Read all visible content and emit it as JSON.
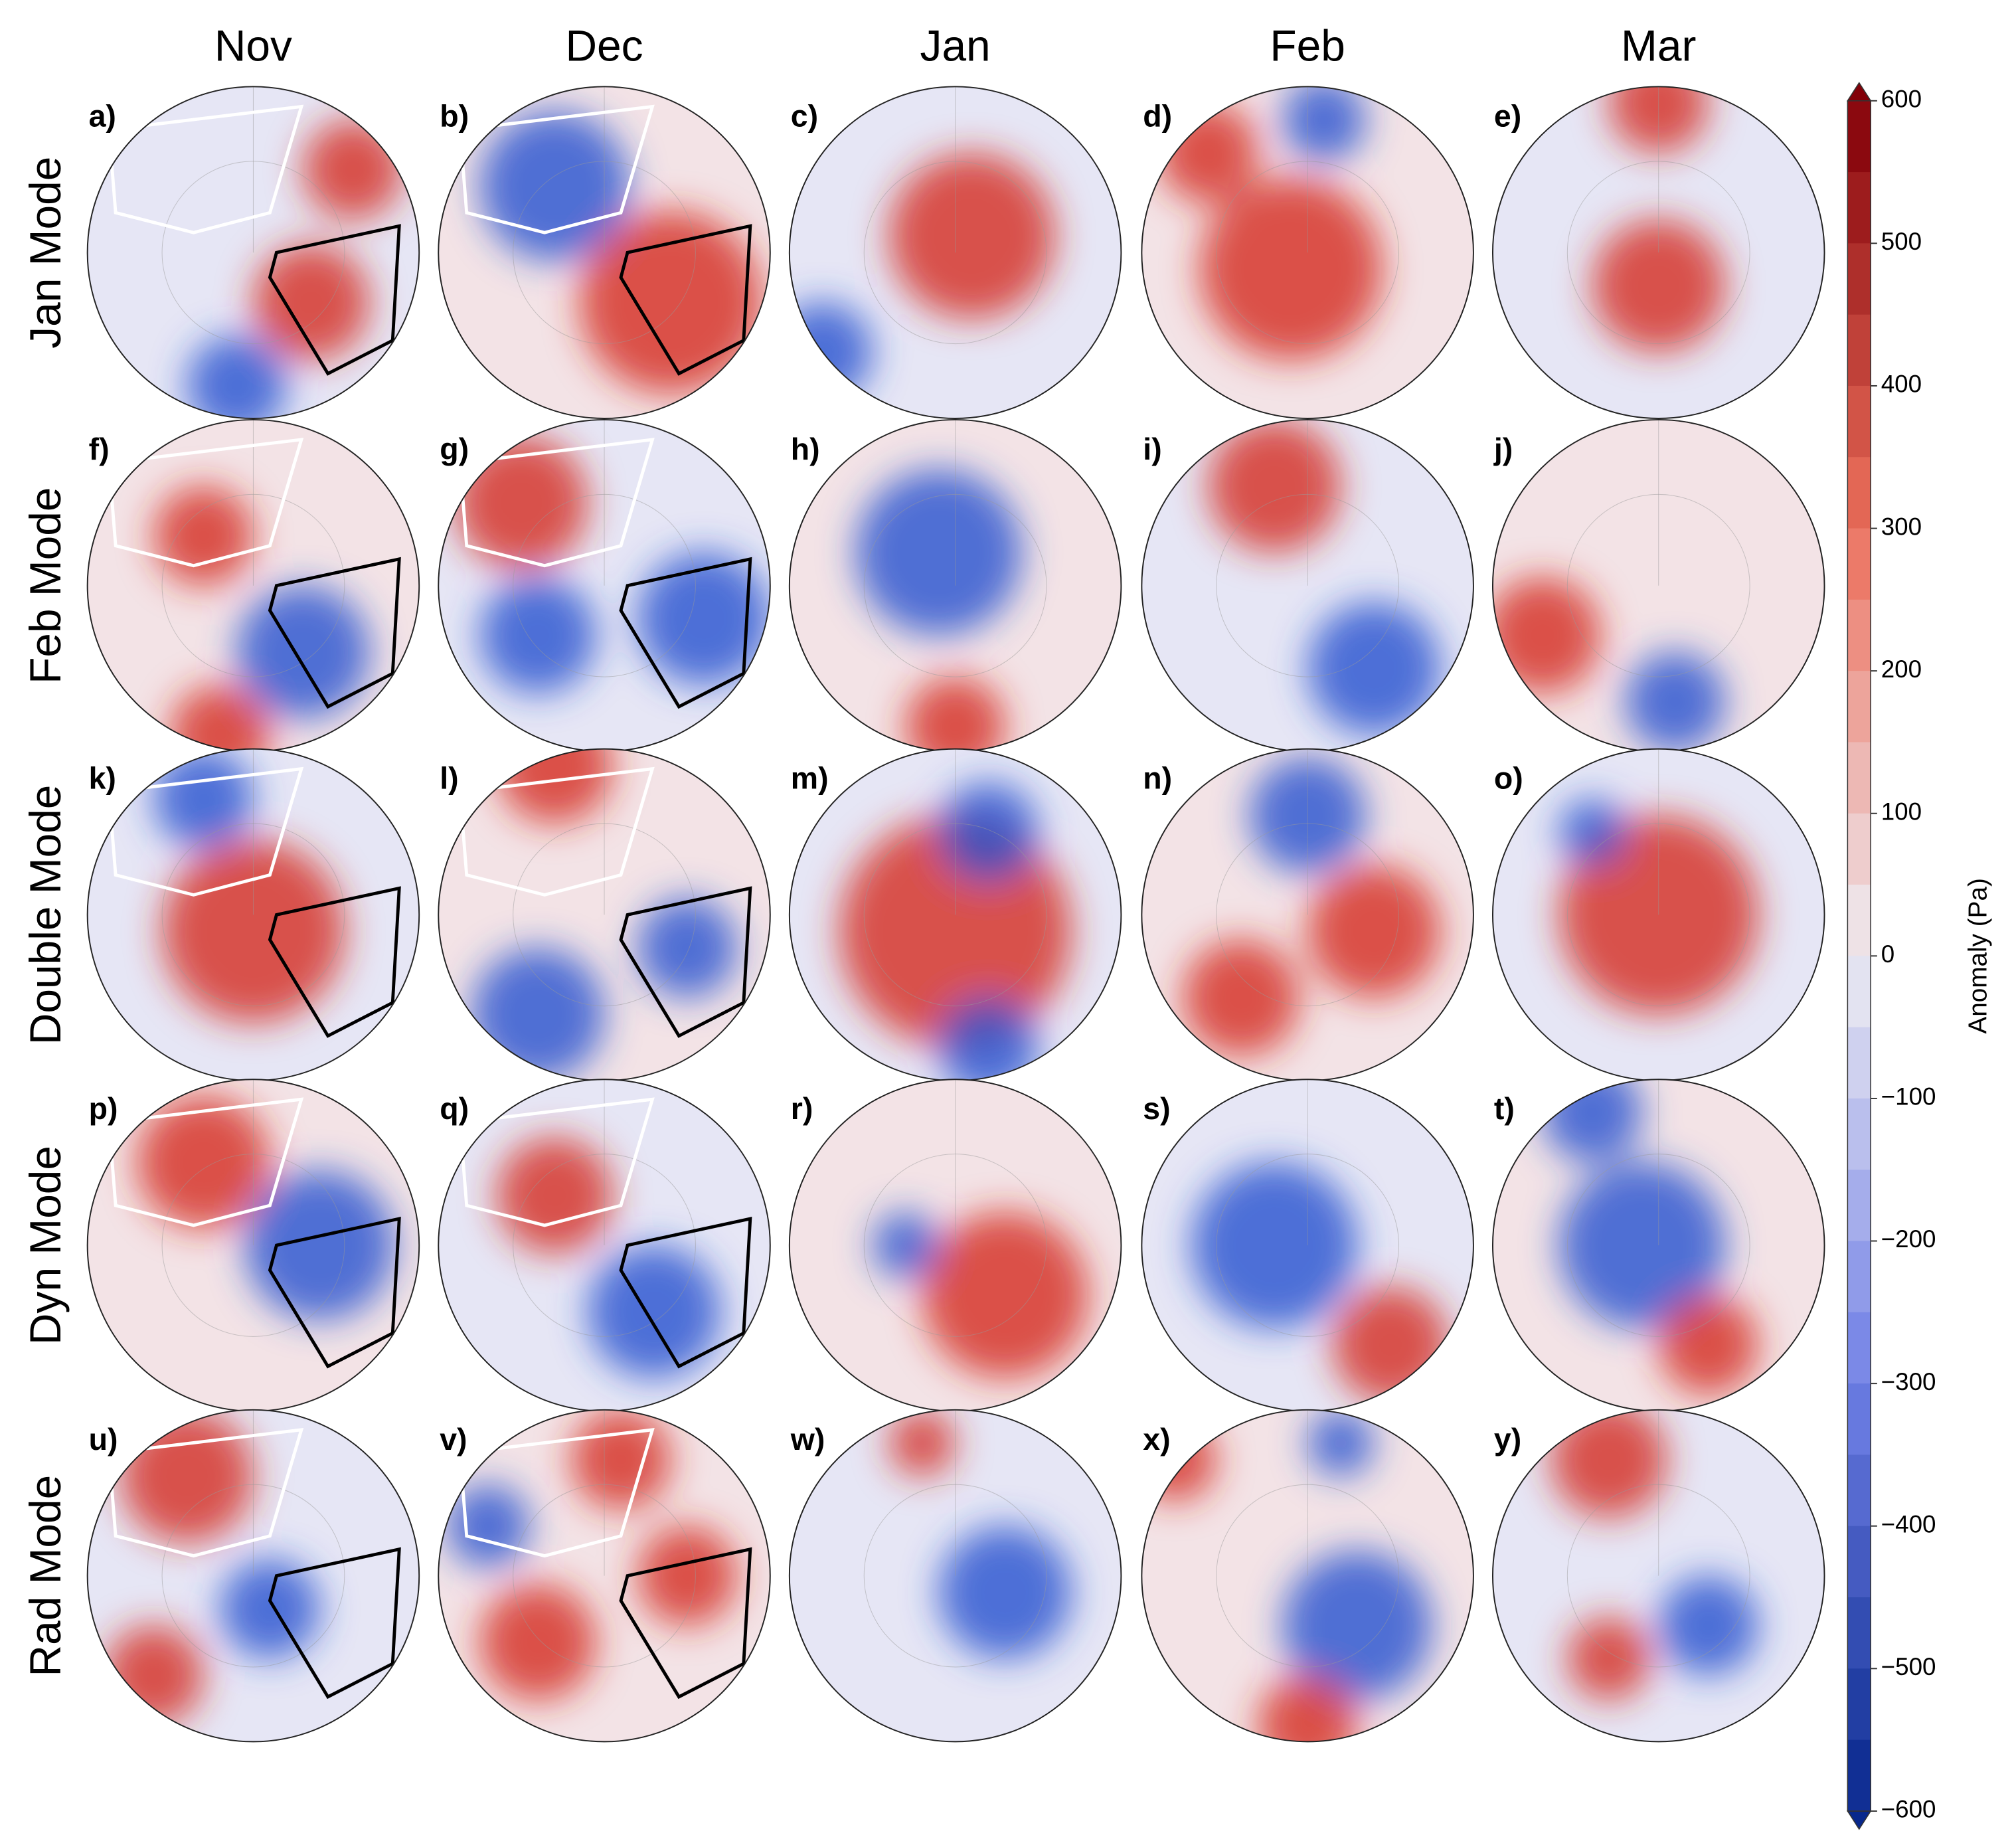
{
  "columns": [
    "Nov",
    "Dec",
    "Jan",
    "Feb",
    "Mar"
  ],
  "rows": [
    "Jan Mode",
    "Feb Mode",
    "Double Mode",
    "Dyn Mode",
    "Rad Mode"
  ],
  "panels": [
    [
      "a)",
      "b)",
      "c)",
      "d)",
      "e)"
    ],
    [
      "f)",
      "g)",
      "h)",
      "i)",
      "j)"
    ],
    [
      "k)",
      "l)",
      "m)",
      "n)",
      "o)"
    ],
    [
      "p)",
      "q)",
      "r)",
      "s)",
      "t)"
    ],
    [
      "u)",
      "v)",
      "w)",
      "x)",
      "y)"
    ]
  ],
  "colorbar": {
    "label": "Anomaly (Pa)",
    "lim": [
      -600,
      600
    ],
    "ticks": [
      600,
      500,
      400,
      300,
      200,
      100,
      0,
      {
        "value": -100,
        "label": "−100"
      },
      {
        "value": -200,
        "label": "−200"
      },
      {
        "value": -300,
        "label": "−300"
      },
      {
        "value": -400,
        "label": "−400"
      },
      {
        "value": -500,
        "label": "−500"
      },
      {
        "value": -600,
        "label": "−600"
      }
    ]
  }
}
